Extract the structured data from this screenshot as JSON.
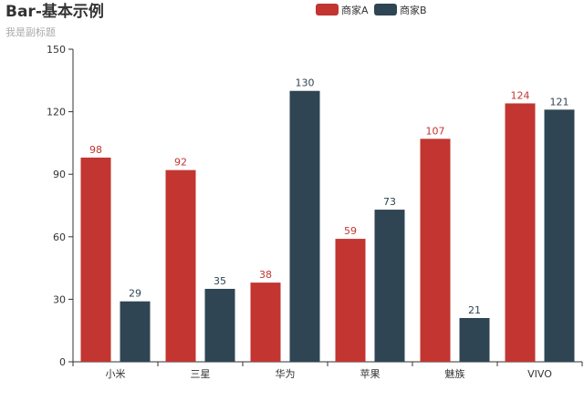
{
  "chart_data": {
    "type": "bar",
    "title": "Bar-基本示例",
    "subtitle": "我是副标题",
    "categories": [
      "小米",
      "三星",
      "华为",
      "苹果",
      "魅族",
      "VIVO"
    ],
    "series": [
      {
        "name": "商家A",
        "color": "#c23531",
        "values": [
          98,
          92,
          38,
          59,
          107,
          124
        ]
      },
      {
        "name": "商家B",
        "color": "#2f4554",
        "values": [
          29,
          35,
          130,
          73,
          21,
          121
        ]
      }
    ],
    "ylim": [
      0,
      150
    ],
    "yticks": [
      0,
      30,
      60,
      90,
      120,
      150
    ],
    "grid": false,
    "legend_position": "top-center",
    "xlabel": "",
    "ylabel": ""
  }
}
